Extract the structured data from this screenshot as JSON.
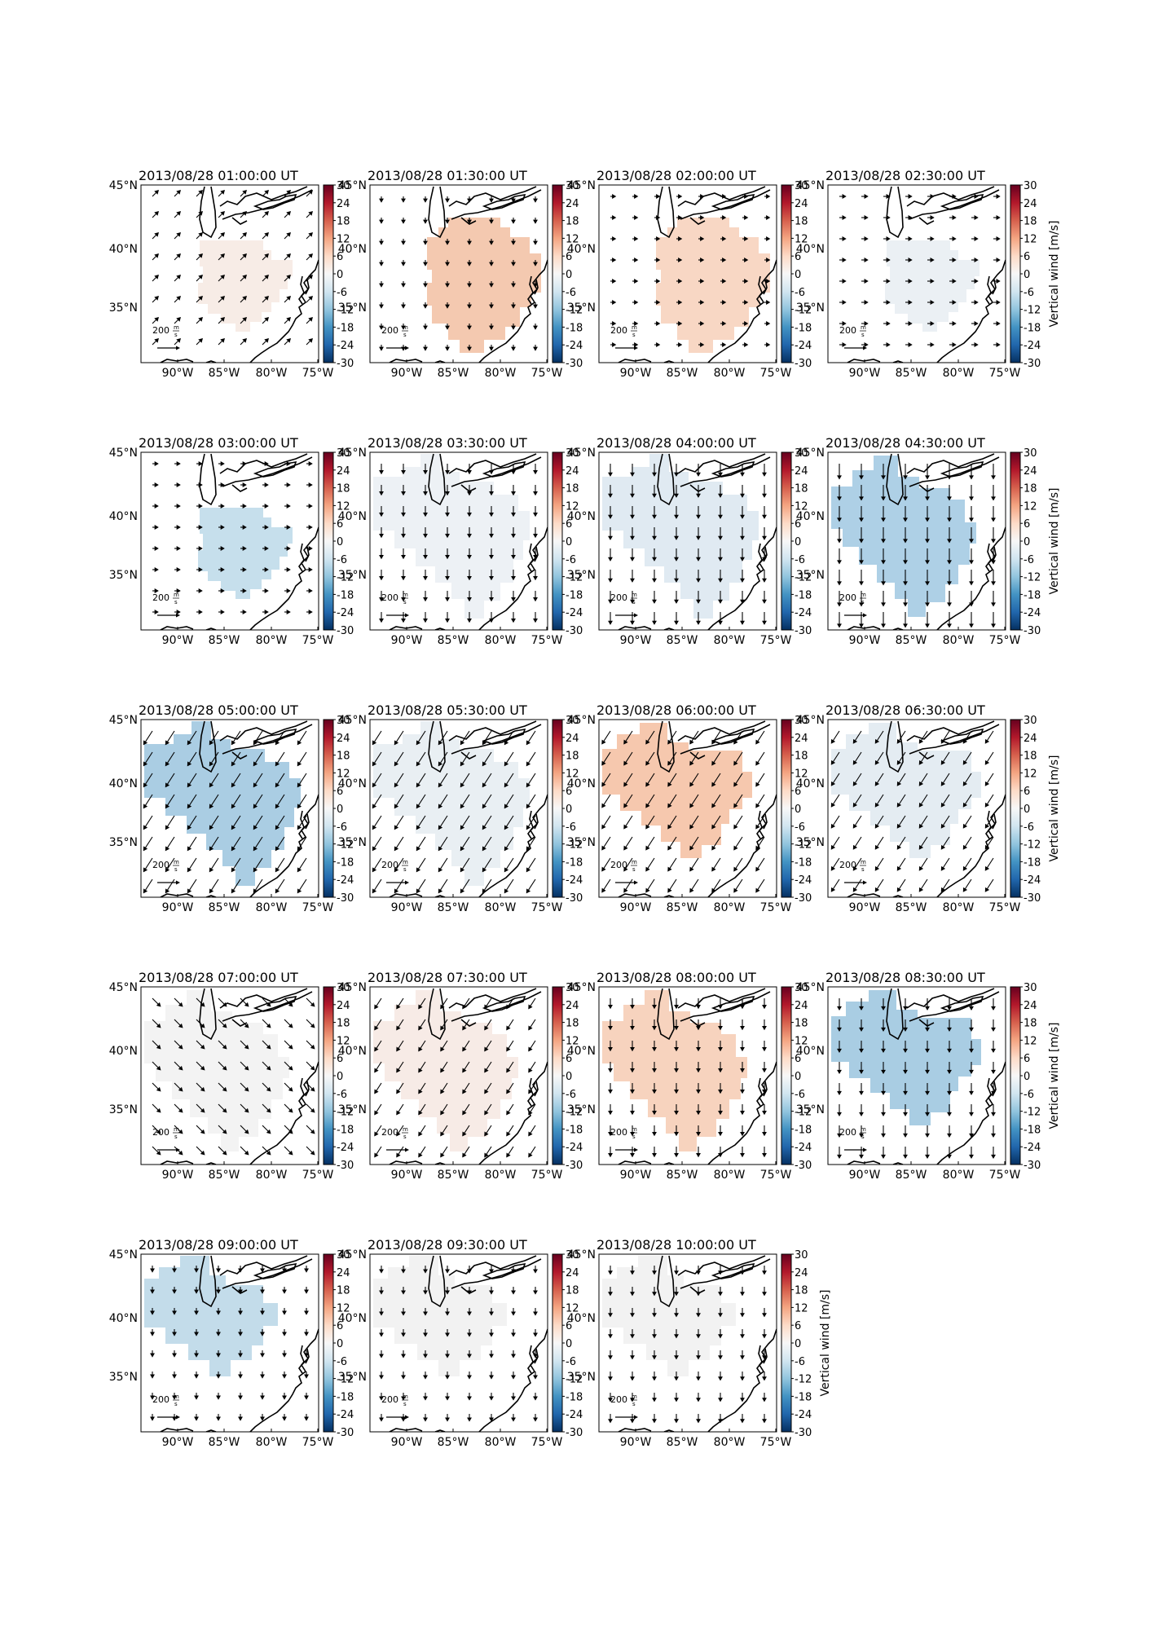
{
  "figure": {
    "colorbar_label": "Vertical wind [m/s]",
    "colorbar_ticks": [
      "30",
      "24",
      "18",
      "12",
      "6",
      "0",
      "-6",
      "-12",
      "-18",
      "-24",
      "-30"
    ],
    "cmap_stops": [
      "#67001f",
      "#b2182b",
      "#d6604d",
      "#f4a582",
      "#fddbc7",
      "#f7f7f7",
      "#d1e5f0",
      "#92c5de",
      "#4393c3",
      "#2166ac",
      "#053061"
    ],
    "lon_ticks": [
      "90°W",
      "85°W",
      "80°W",
      "75°W"
    ],
    "lat_ticks": [
      "45°N",
      "40°N",
      "35°N"
    ],
    "scale_label": "200",
    "scale_unit_num": "m",
    "scale_unit_den": "s"
  },
  "chart_data": [
    {
      "type": "heatmap",
      "title": "2013/08/28 01:00:00 UT",
      "fill": "#f7ece6",
      "vector_dir": "NE",
      "vector_strength": 0.35,
      "colorbar_range": [
        -30,
        30
      ]
    },
    {
      "type": "heatmap",
      "title": "2013/08/28 01:30:00 UT",
      "fill": "#f4c9b0",
      "vector_dir": "S",
      "vector_strength": 0.15,
      "colorbar_range": [
        -30,
        30
      ]
    },
    {
      "type": "heatmap",
      "title": "2013/08/28 02:00:00 UT",
      "fill": "#f8d7c4",
      "vector_dir": "E",
      "vector_strength": 0.12,
      "colorbar_range": [
        -30,
        30
      ]
    },
    {
      "type": "heatmap",
      "title": "2013/08/28 02:30:00 UT",
      "fill": "#ebf0f4",
      "vector_dir": "E",
      "vector_strength": 0.2,
      "colorbar_range": [
        -30,
        30
      ]
    },
    {
      "type": "heatmap",
      "title": "2013/08/28 03:00:00 UT",
      "fill": "#c6dfec",
      "vector_dir": "E",
      "vector_strength": 0.15,
      "colorbar_range": [
        -30,
        30
      ]
    },
    {
      "type": "heatmap",
      "title": "2013/08/28 03:30:00 UT",
      "fill": "#edf1f5",
      "vector_dir": "S",
      "vector_strength": 0.45,
      "colorbar_range": [
        -30,
        30
      ]
    },
    {
      "type": "heatmap",
      "title": "2013/08/28 04:00:00 UT",
      "fill": "#e0eaf2",
      "vector_dir": "S",
      "vector_strength": 0.6,
      "colorbar_range": [
        -30,
        30
      ]
    },
    {
      "type": "heatmap",
      "title": "2013/08/28 04:30:00 UT",
      "fill": "#aed0e6",
      "vector_dir": "S",
      "vector_strength": 0.8,
      "colorbar_range": [
        -30,
        30
      ]
    },
    {
      "type": "heatmap",
      "title": "2013/08/28 05:00:00 UT",
      "fill": "#aacde3",
      "vector_dir": "SW",
      "vector_strength": 0.85,
      "colorbar_range": [
        -30,
        30
      ]
    },
    {
      "type": "heatmap",
      "title": "2013/08/28 05:30:00 UT",
      "fill": "#e9eff3",
      "vector_dir": "SW",
      "vector_strength": 0.85,
      "colorbar_range": [
        -30,
        30
      ]
    },
    {
      "type": "heatmap",
      "title": "2013/08/28 06:00:00 UT",
      "fill": "#f6c8ae",
      "vector_dir": "SW",
      "vector_strength": 0.8,
      "colorbar_range": [
        -30,
        30
      ]
    },
    {
      "type": "heatmap",
      "title": "2013/08/28 06:30:00 UT",
      "fill": "#e4ecf2",
      "vector_dir": "SW",
      "vector_strength": 0.75,
      "colorbar_range": [
        -30,
        30
      ]
    },
    {
      "type": "heatmap",
      "title": "2013/08/28 07:00:00 UT",
      "fill": "#f3f3f3",
      "vector_dir": "SE",
      "vector_strength": 0.55,
      "colorbar_range": [
        -30,
        30
      ]
    },
    {
      "type": "heatmap",
      "title": "2013/08/28 07:30:00 UT",
      "fill": "#f7ebe6",
      "vector_dir": "SW",
      "vector_strength": 0.6,
      "colorbar_range": [
        -30,
        30
      ]
    },
    {
      "type": "heatmap",
      "title": "2013/08/28 08:00:00 UT",
      "fill": "#f7d3be",
      "vector_dir": "S",
      "vector_strength": 0.45,
      "colorbar_range": [
        -30,
        30
      ]
    },
    {
      "type": "heatmap",
      "title": "2013/08/28 08:30:00 UT",
      "fill": "#a9cde3",
      "vector_dir": "S",
      "vector_strength": 0.55,
      "colorbar_range": [
        -30,
        30
      ]
    },
    {
      "type": "heatmap",
      "title": "2013/08/28 09:00:00 UT",
      "fill": "#c3dcea",
      "vector_dir": "S",
      "vector_strength": 0.2,
      "colorbar_range": [
        -30,
        30
      ]
    },
    {
      "type": "heatmap",
      "title": "2013/08/28 09:30:00 UT",
      "fill": "#f2f2f2",
      "vector_dir": "S",
      "vector_strength": 0.25,
      "colorbar_range": [
        -30,
        30
      ]
    },
    {
      "type": "heatmap",
      "title": "2013/08/28 10:00:00 UT",
      "fill": "#f2f2f2",
      "vector_dir": "S",
      "vector_strength": 0.35,
      "colorbar_range": [
        -30,
        30
      ]
    }
  ]
}
